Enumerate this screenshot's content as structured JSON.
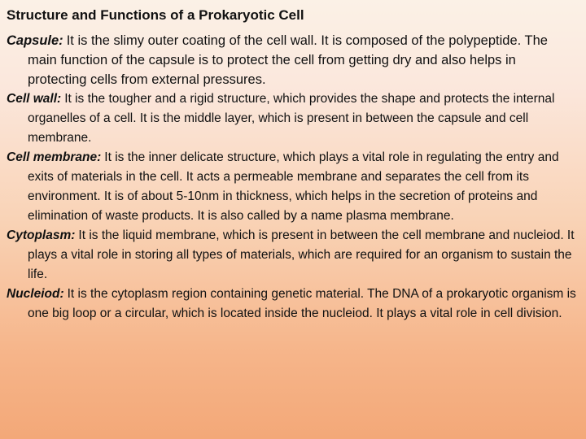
{
  "title": "Structure and Functions of a Prokaryotic Cell",
  "items": [
    {
      "term": "Capsule:",
      "text": "It is the slimy outer coating of the cell wall. It is composed of the polypeptide. The main function of the capsule is to protect the cell from getting dry and also helps in protecting cells from external pressures."
    },
    {
      "term": "Cell wall:",
      "text": "It is the tougher and a rigid structure, which provides the shape and protects the internal organelles of a cell. It is the middle layer, which is present in between the capsule and cell membrane."
    },
    {
      "term": "Cell membrane:",
      "text": "It is the inner delicate structure, which plays a vital role in regulating the entry and exits of materials in the cell. It acts a permeable membrane and separates the cell from its environment. It is of about 5-10nm in thickness, which helps in the secretion of proteins and elimination of waste products. It is also called by a name plasma membrane."
    },
    {
      "term": "Cytoplasm:",
      "text": "It is the liquid membrane, which is present in between the cell membrane and nucleiod. It plays a vital role in storing all types of materials, which are required for an organism to sustain the life."
    },
    {
      "term": "Nucleiod:",
      "text": "It is the cytoplasm region containing genetic material. The DNA of a prokaryotic organism is one big loop or a circular, which is located inside the nucleiod. It plays a vital role in cell division."
    }
  ]
}
